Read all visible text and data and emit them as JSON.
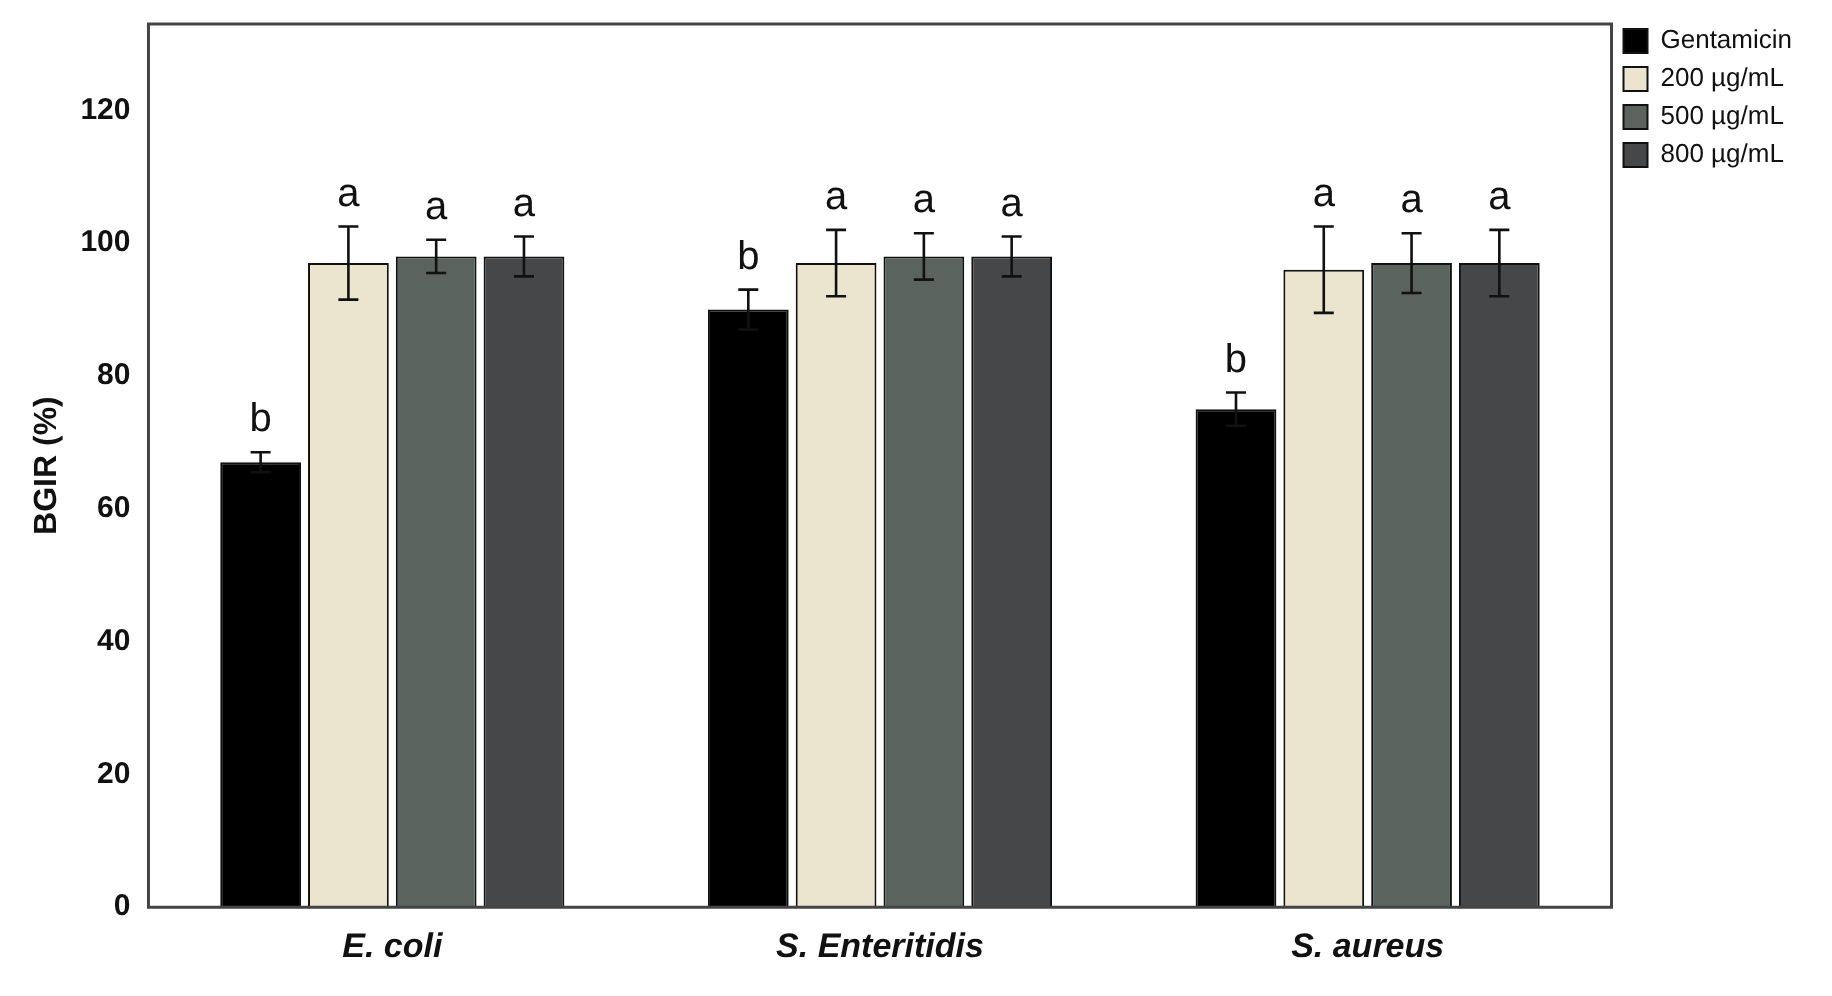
{
  "chart_data": {
    "type": "bar",
    "ylabel": "BGIR (%)",
    "categories": [
      "E. coli",
      "S. Enteritidis",
      "S. aureus"
    ],
    "series": [
      {
        "name": "Gentamicin",
        "color": "#000000",
        "values": [
          67,
          90,
          75
        ],
        "errors": [
          1.5,
          3,
          2.5
        ],
        "value_labels": [
          "b",
          "b",
          "b"
        ]
      },
      {
        "name": "200 µg/mL",
        "color": "#ebe5cf",
        "values": [
          97,
          97,
          96
        ],
        "errors": [
          5.5,
          5,
          6.5
        ],
        "value_labels": [
          "a",
          "a",
          "a"
        ]
      },
      {
        "name": "500 µg/mL",
        "color": "#5a635d",
        "values": [
          98,
          98,
          97
        ],
        "errors": [
          2.5,
          3.5,
          4.5
        ],
        "value_labels": [
          "a",
          "a",
          "a"
        ]
      },
      {
        "name": "800 µg/mL",
        "color": "#464749",
        "values": [
          98,
          98,
          97
        ],
        "errors": [
          3,
          3,
          5
        ],
        "value_labels": [
          "a",
          "a",
          "a"
        ]
      }
    ],
    "ylim": [
      0,
      133
    ],
    "yticks": [
      0,
      20,
      40,
      60,
      80,
      100,
      120
    ],
    "grid": false,
    "legend": "top right"
  }
}
